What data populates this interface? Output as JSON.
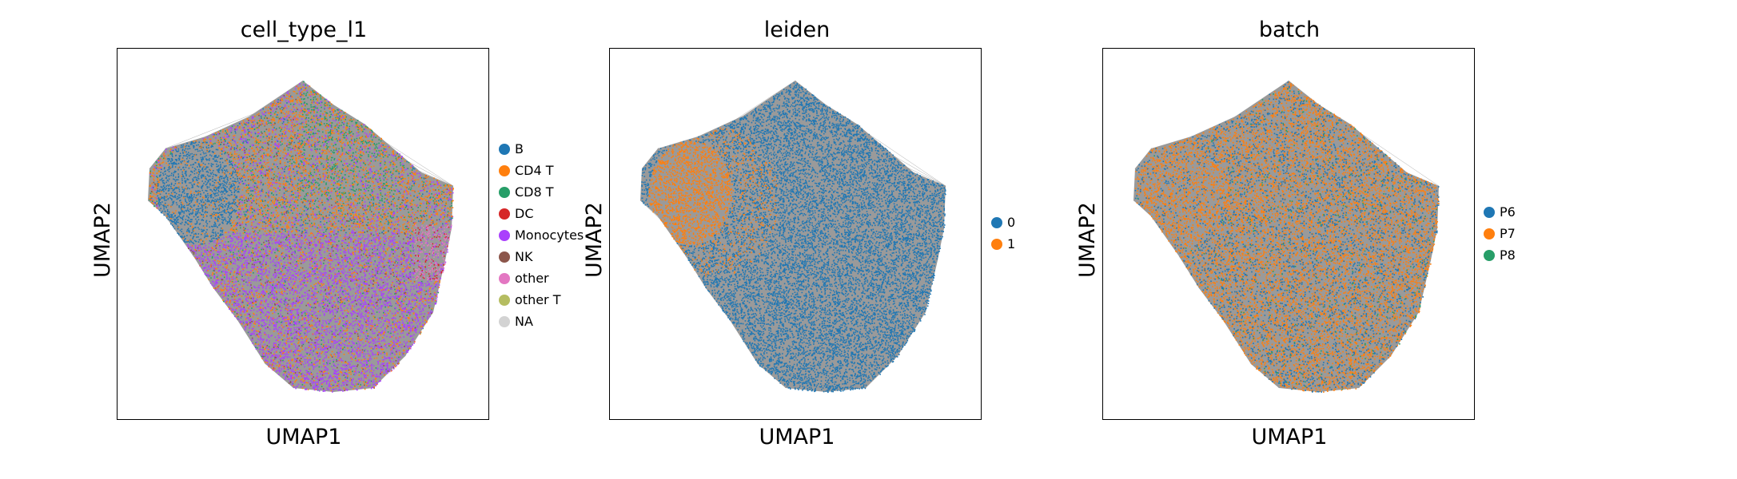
{
  "chart_data": [
    {
      "type": "scatter",
      "title": "cell_type_l1",
      "xlabel": "UMAP1",
      "ylabel": "UMAP2",
      "legend_position": "right",
      "legend": [
        {
          "label": "B",
          "color": "#1f77b4"
        },
        {
          "label": "CD4 T",
          "color": "#ff7f0e"
        },
        {
          "label": "CD8 T",
          "color": "#279e68"
        },
        {
          "label": "DC",
          "color": "#d62728"
        },
        {
          "label": "Monocytes",
          "color": "#aa40fc"
        },
        {
          "label": "NK",
          "color": "#8c564b"
        },
        {
          "label": "other",
          "color": "#e377c2"
        },
        {
          "label": "other T",
          "color": "#b5bd61"
        },
        {
          "label": "NA",
          "color": "#d3d3d3"
        }
      ]
    },
    {
      "type": "scatter",
      "title": "leiden",
      "xlabel": "UMAP1",
      "ylabel": "UMAP2",
      "legend_position": "right",
      "legend": [
        {
          "label": "0",
          "color": "#1f77b4"
        },
        {
          "label": "1",
          "color": "#ff7f0e"
        }
      ]
    },
    {
      "type": "scatter",
      "title": "batch",
      "xlabel": "UMAP1",
      "ylabel": "UMAP2",
      "legend_position": "right",
      "legend": [
        {
          "label": "P6",
          "color": "#1f77b4"
        },
        {
          "label": "P7",
          "color": "#ff7f0e"
        },
        {
          "label": "P8",
          "color": "#279e68"
        }
      ]
    }
  ]
}
